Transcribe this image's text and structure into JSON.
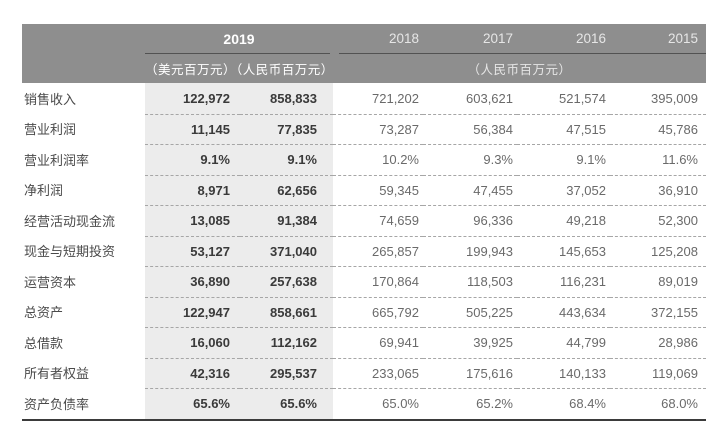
{
  "table": {
    "header": {
      "year_primary": "2019",
      "years": [
        "2018",
        "2017",
        "2016",
        "2015"
      ],
      "units_primary": "（美元百万元）（人民币百万元）",
      "units_secondary": "（人民币百万元）"
    },
    "rows": [
      {
        "label": "销售收入",
        "usd": "122,972",
        "rmb": "858,833",
        "y2018": "721,202",
        "y2017": "603,621",
        "y2016": "521,574",
        "y2015": "395,009"
      },
      {
        "label": "营业利润",
        "usd": "11,145",
        "rmb": "77,835",
        "y2018": "73,287",
        "y2017": "56,384",
        "y2016": "47,515",
        "y2015": "45,786"
      },
      {
        "label": "营业利润率",
        "usd": "9.1%",
        "rmb": "9.1%",
        "y2018": "10.2%",
        "y2017": "9.3%",
        "y2016": "9.1%",
        "y2015": "11.6%"
      },
      {
        "label": "净利润",
        "usd": "8,971",
        "rmb": "62,656",
        "y2018": "59,345",
        "y2017": "47,455",
        "y2016": "37,052",
        "y2015": "36,910"
      },
      {
        "label": "经营活动现金流",
        "usd": "13,085",
        "rmb": "91,384",
        "y2018": "74,659",
        "y2017": "96,336",
        "y2016": "49,218",
        "y2015": "52,300"
      },
      {
        "label": "现金与短期投资",
        "usd": "53,127",
        "rmb": "371,040",
        "y2018": "265,857",
        "y2017": "199,943",
        "y2016": "145,653",
        "y2015": "125,208"
      },
      {
        "label": "运营资本",
        "usd": "36,890",
        "rmb": "257,638",
        "y2018": "170,864",
        "y2017": "118,503",
        "y2016": "116,231",
        "y2015": "89,019"
      },
      {
        "label": "总资产",
        "usd": "122,947",
        "rmb": "858,661",
        "y2018": "665,792",
        "y2017": "505,225",
        "y2016": "443,634",
        "y2015": "372,155"
      },
      {
        "label": "总借款",
        "usd": "16,060",
        "rmb": "112,162",
        "y2018": "69,941",
        "y2017": "39,925",
        "y2016": "44,799",
        "y2015": "28,986"
      },
      {
        "label": "所有者权益",
        "usd": "42,316",
        "rmb": "295,537",
        "y2018": "233,065",
        "y2017": "175,616",
        "y2016": "140,133",
        "y2015": "119,069"
      },
      {
        "label": "资产负债率",
        "usd": "65.6%",
        "rmb": "65.6%",
        "y2018": "65.0%",
        "y2017": "65.2%",
        "y2016": "68.4%",
        "y2015": "68.0%"
      }
    ],
    "colors": {
      "header_bg": "#8e8e8e",
      "header_text": "#ffffff",
      "header_text_secondary": "#e6e6e6",
      "highlight_bg": "#ececec",
      "underline": "#525252",
      "label_text": "#4a4a4a",
      "value_bold": "#3a3a3a",
      "value_regular": "#6a6a6a",
      "dash": "#a6a6a6",
      "bottom_border": "#3b3b3b"
    }
  }
}
